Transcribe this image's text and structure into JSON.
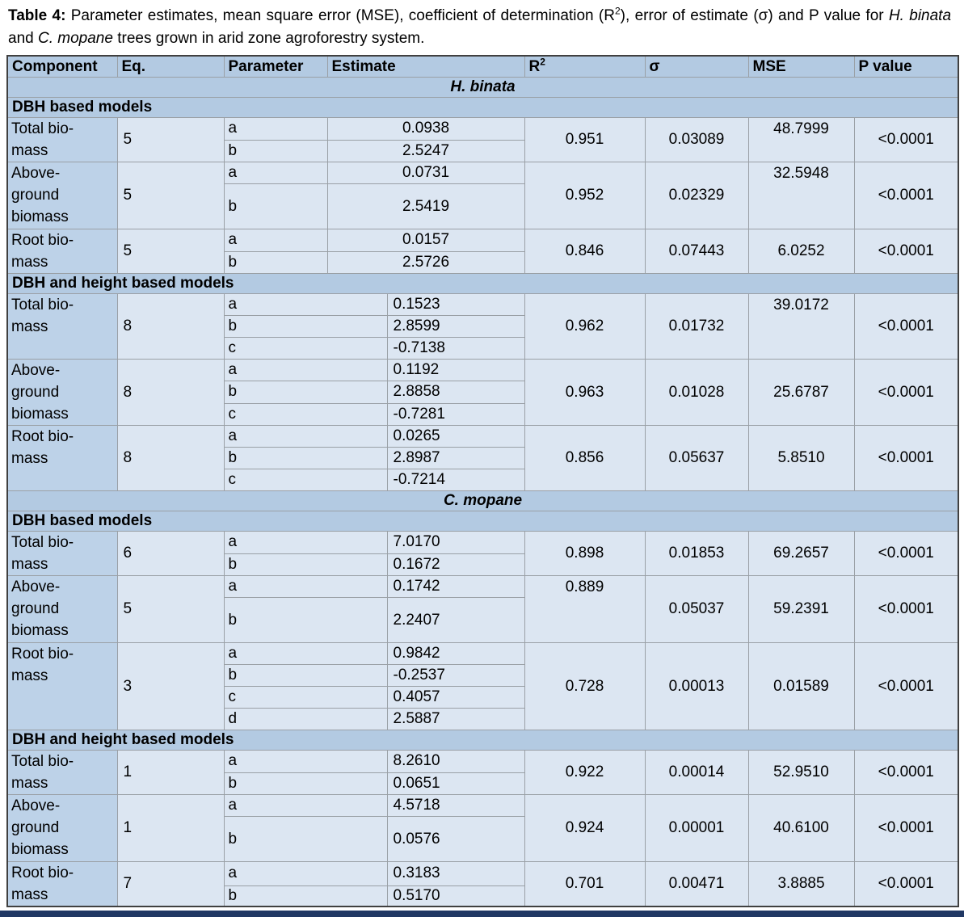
{
  "caption": {
    "parts": [
      {
        "text": "Table 4:",
        "style": "bold"
      },
      {
        "text": " Parameter estimates, mean square error (MSE), coefficient of determination (R",
        "style": "normal"
      },
      {
        "text": "2",
        "style": "sup"
      },
      {
        "text": "), error of estimate (σ) and P value for ",
        "style": "normal"
      },
      {
        "text": "H. binata",
        "style": "italic"
      },
      {
        "text": " and ",
        "style": "normal"
      },
      {
        "text": "C. mopane",
        "style": "italic"
      },
      {
        "text": " trees grown in arid zone agroforestry system.",
        "style": "normal"
      }
    ]
  },
  "table": {
    "columns": [
      {
        "label": "Component"
      },
      {
        "label": "Eq."
      },
      {
        "label": "Parameter"
      },
      {
        "label": "Estimate"
      },
      {
        "label": "R",
        "sup": "2"
      },
      {
        "label": "σ"
      },
      {
        "label": "MSE"
      },
      {
        "label": "P value"
      }
    ],
    "sections": [
      {
        "species": "H. binata",
        "groups": [
          {
            "title": "DBH based models",
            "layout": "wide",
            "rows": [
              {
                "component": "Total bio-\nmass",
                "eq": "5",
                "params": [
                  {
                    "name": "a",
                    "estimate": "0.0938"
                  },
                  {
                    "name": "b",
                    "estimate": "2.5247"
                  }
                ],
                "r2": "0.951",
                "sigma": "0.03089",
                "mse": "48.7999",
                "p": "<0.0001",
                "mse_top": true
              },
              {
                "component": "Above-\nground\nbiomass",
                "eq": "5",
                "params": [
                  {
                    "name": "a",
                    "estimate": "0.0731"
                  },
                  {
                    "name": "b",
                    "estimate": "2.5419"
                  }
                ],
                "r2": "0.952",
                "sigma": "0.02329",
                "mse": "32.5948",
                "p": "<0.0001",
                "mse_top": true
              },
              {
                "component": "Root bio-\nmass",
                "eq": "5",
                "params": [
                  {
                    "name": "a",
                    "estimate": "0.0157"
                  },
                  {
                    "name": "b",
                    "estimate": "2.5726"
                  }
                ],
                "r2": "0.846",
                "sigma": "0.07443",
                "mse": "6.0252",
                "p": "<0.0001"
              }
            ]
          },
          {
            "title": "DBH and height based models",
            "layout": "split",
            "rows": [
              {
                "component": "Total bio-\nmass",
                "eq": "8",
                "params": [
                  {
                    "name": "a",
                    "estimate": "0.1523"
                  },
                  {
                    "name": "b",
                    "estimate": "2.8599"
                  },
                  {
                    "name": "c",
                    "estimate": "-0.7138"
                  }
                ],
                "r2": "0.962",
                "sigma": "0.01732",
                "mse": "39.0172",
                "p": "<0.0001",
                "mse_top": true
              },
              {
                "component": "Above-\nground\nbiomass",
                "eq": "8",
                "params": [
                  {
                    "name": "a",
                    "estimate": "0.1192"
                  },
                  {
                    "name": "b",
                    "estimate": "2.8858"
                  },
                  {
                    "name": "c",
                    "estimate": "-0.7281"
                  }
                ],
                "r2": "0.963",
                "sigma": "0.01028",
                "mse": "25.6787",
                "p": "<0.0001"
              },
              {
                "component": "Root bio-\nmass",
                "eq": "8",
                "params": [
                  {
                    "name": "a",
                    "estimate": "0.0265"
                  },
                  {
                    "name": "b",
                    "estimate": "2.8987"
                  },
                  {
                    "name": "c",
                    "estimate": "-0.7214"
                  }
                ],
                "r2": "0.856",
                "sigma": "0.05637",
                "mse": "5.8510",
                "p": "<0.0001"
              }
            ]
          }
        ]
      },
      {
        "species": "C. mopane",
        "groups": [
          {
            "title": "DBH based models",
            "layout": "split",
            "rows": [
              {
                "component": "Total bio-\nmass",
                "eq": "6",
                "params": [
                  {
                    "name": "a",
                    "estimate": "7.0170"
                  },
                  {
                    "name": "b",
                    "estimate": "0.1672"
                  }
                ],
                "r2": "0.898",
                "sigma": "0.01853",
                "mse": "69.2657",
                "p": "<0.0001"
              },
              {
                "component": "Above-\nground\nbiomass",
                "eq": "5",
                "params": [
                  {
                    "name": "a",
                    "estimate": "0.1742"
                  },
                  {
                    "name": "b",
                    "estimate": "2.2407"
                  }
                ],
                "r2": "0.889",
                "sigma": "0.05037",
                "mse": "59.2391",
                "p": "<0.0001",
                "r2_top": true
              },
              {
                "component": "Root bio-\nmass",
                "eq": "3",
                "params": [
                  {
                    "name": "a",
                    "estimate": "0.9842"
                  },
                  {
                    "name": "b",
                    "estimate": "-0.2537"
                  },
                  {
                    "name": "c",
                    "estimate": "0.4057"
                  },
                  {
                    "name": "d",
                    "estimate": "2.5887"
                  }
                ],
                "r2": "0.728",
                "sigma": "0.00013",
                "mse": "0.01589",
                "p": "<0.0001"
              }
            ]
          },
          {
            "title": "DBH and height based models",
            "layout": "split",
            "rows": [
              {
                "component": "Total bio-\nmass",
                "eq": "1",
                "params": [
                  {
                    "name": "a",
                    "estimate": "8.2610"
                  },
                  {
                    "name": "b",
                    "estimate": "0.0651"
                  }
                ],
                "r2": "0.922",
                "sigma": "0.00014",
                "mse": "52.9510",
                "p": "<0.0001"
              },
              {
                "component": "Above-\nground\nbiomass",
                "eq": "1",
                "params": [
                  {
                    "name": "a",
                    "estimate": "4.5718"
                  },
                  {
                    "name": "b",
                    "estimate": "0.0576"
                  }
                ],
                "r2": "0.924",
                "sigma": "0.00001",
                "mse": "40.6100",
                "p": "<0.0001"
              },
              {
                "component": "Root bio-\nmass",
                "eq": "7",
                "params": [
                  {
                    "name": "a",
                    "estimate": "0.3183"
                  },
                  {
                    "name": "b",
                    "estimate": "0.5170"
                  }
                ],
                "r2": "0.701",
                "sigma": "0.00471",
                "mse": "3.8885",
                "p": "<0.0001"
              }
            ]
          }
        ]
      }
    ]
  },
  "colors": {
    "header_blue": "#b3cae2",
    "component_blue": "#bdd2e8",
    "cell_blue": "#dce6f2",
    "grid_border": "#9aa0a6",
    "outer_border": "#404040",
    "bottom_bar_navy": "#203864"
  }
}
